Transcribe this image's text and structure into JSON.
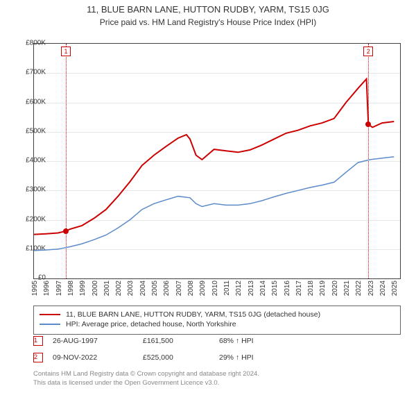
{
  "title": "11, BLUE BARN LANE, HUTTON RUDBY, YARM, TS15 0JG",
  "subtitle": "Price paid vs. HM Land Registry's House Price Index (HPI)",
  "chart": {
    "type": "line",
    "background_color": "#ffffff",
    "grid_color": "#e8e8e8",
    "axis_color": "#404040",
    "ylim": [
      0,
      800000
    ],
    "ytick_step": 100000,
    "y_labels": [
      "£0",
      "£100K",
      "£200K",
      "£300K",
      "£400K",
      "£500K",
      "£600K",
      "£700K",
      "£800K"
    ],
    "x_years": [
      1995,
      1996,
      1997,
      1998,
      1999,
      2000,
      2001,
      2002,
      2003,
      2004,
      2005,
      2006,
      2007,
      2008,
      2009,
      2010,
      2011,
      2012,
      2013,
      2014,
      2015,
      2016,
      2017,
      2018,
      2019,
      2020,
      2021,
      2022,
      2023,
      2024,
      2025
    ],
    "xlim": [
      1995,
      2025.5
    ],
    "label_fontsize": 10,
    "series": [
      {
        "key": "property",
        "label": "11, BLUE BARN LANE, HUTTON RUDBY, YARM, TS15 0JG (detached house)",
        "color": "#cc0000",
        "line_width": 2,
        "points": [
          [
            1995,
            150000
          ],
          [
            1996,
            152000
          ],
          [
            1997,
            155000
          ],
          [
            1997.66,
            161500
          ],
          [
            1998,
            168000
          ],
          [
            1999,
            180000
          ],
          [
            2000,
            205000
          ],
          [
            2001,
            235000
          ],
          [
            2002,
            280000
          ],
          [
            2003,
            330000
          ],
          [
            2004,
            385000
          ],
          [
            2005,
            420000
          ],
          [
            2006,
            450000
          ],
          [
            2007,
            478000
          ],
          [
            2007.7,
            490000
          ],
          [
            2008,
            475000
          ],
          [
            2008.5,
            420000
          ],
          [
            2009,
            405000
          ],
          [
            2010,
            440000
          ],
          [
            2011,
            435000
          ],
          [
            2012,
            430000
          ],
          [
            2013,
            438000
          ],
          [
            2014,
            455000
          ],
          [
            2015,
            475000
          ],
          [
            2016,
            495000
          ],
          [
            2017,
            505000
          ],
          [
            2018,
            520000
          ],
          [
            2019,
            530000
          ],
          [
            2020,
            545000
          ],
          [
            2021,
            600000
          ],
          [
            2022,
            648000
          ],
          [
            2022.7,
            680000
          ],
          [
            2022.86,
            525000
          ],
          [
            2023.2,
            515000
          ],
          [
            2024,
            530000
          ],
          [
            2025,
            535000
          ]
        ]
      },
      {
        "key": "hpi",
        "label": "HPI: Average price, detached house, North Yorkshire",
        "color": "#5b8bc9",
        "line_width": 1.5,
        "points": [
          [
            1995,
            95000
          ],
          [
            1996,
            97000
          ],
          [
            1997,
            100000
          ],
          [
            1998,
            108000
          ],
          [
            1999,
            118000
          ],
          [
            2000,
            132000
          ],
          [
            2001,
            148000
          ],
          [
            2002,
            172000
          ],
          [
            2003,
            200000
          ],
          [
            2004,
            235000
          ],
          [
            2005,
            255000
          ],
          [
            2006,
            268000
          ],
          [
            2007,
            280000
          ],
          [
            2008,
            275000
          ],
          [
            2008.5,
            255000
          ],
          [
            2009,
            245000
          ],
          [
            2010,
            255000
          ],
          [
            2011,
            250000
          ],
          [
            2012,
            250000
          ],
          [
            2013,
            255000
          ],
          [
            2014,
            265000
          ],
          [
            2015,
            278000
          ],
          [
            2016,
            290000
          ],
          [
            2017,
            300000
          ],
          [
            2018,
            310000
          ],
          [
            2019,
            318000
          ],
          [
            2020,
            328000
          ],
          [
            2021,
            362000
          ],
          [
            2022,
            395000
          ],
          [
            2023,
            405000
          ],
          [
            2024,
            410000
          ],
          [
            2025,
            415000
          ]
        ]
      }
    ],
    "sale_markers": [
      {
        "num": "1",
        "year": 1997.66,
        "price": 161500,
        "color": "#cc0000"
      },
      {
        "num": "2",
        "year": 2022.86,
        "price": 525000,
        "color": "#cc0000"
      }
    ]
  },
  "legend": {
    "border_color": "#666666"
  },
  "sales_table": [
    {
      "num": "1",
      "date": "26-AUG-1997",
      "price": "£161,500",
      "diff": "68% ↑ HPI",
      "color": "#cc0000"
    },
    {
      "num": "2",
      "date": "09-NOV-2022",
      "price": "£525,000",
      "diff": "29% ↑ HPI",
      "color": "#cc0000"
    }
  ],
  "footer_line1": "Contains HM Land Registry data © Crown copyright and database right 2024.",
  "footer_line2": "This data is licensed under the Open Government Licence v3.0."
}
